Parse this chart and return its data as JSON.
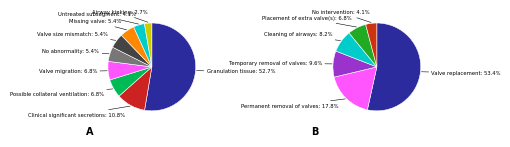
{
  "chart_A": {
    "labels": [
      "Granulation tissue: 52.7%",
      "Clinical significant secretions: 10.8%",
      "Possible collateral ventilation: 6.8%",
      "Valve migration: 6.8%",
      "No abnormality: 5.4%",
      "Valve size mismatch: 5.4%",
      "Missing valve: 5.4%",
      "Untreated subsegment: 4.1%",
      "Airway kinking: 2.7%"
    ],
    "values": [
      52.7,
      10.8,
      6.8,
      6.8,
      5.4,
      5.4,
      5.4,
      4.1,
      2.7
    ],
    "colors": [
      "#2b2b9e",
      "#cc2222",
      "#00bb55",
      "#ff55ff",
      "#777777",
      "#444444",
      "#ff8800",
      "#00cccc",
      "#cccc00"
    ],
    "startangle": 90,
    "label": "A"
  },
  "chart_B": {
    "labels": [
      "Valve replacement: 53.4%",
      "Permanent removal of valves: 17.8%",
      "Temporary removal of valves: 9.6%",
      "Cleaning of airways: 8.2%",
      "Placement of extra valve(s): 6.8%",
      "No intervention: 4.1%"
    ],
    "values": [
      53.4,
      17.8,
      9.6,
      8.2,
      6.8,
      4.1
    ],
    "colors": [
      "#2b2b9e",
      "#ff55ff",
      "#9933cc",
      "#00cccc",
      "#22aa22",
      "#cc3311"
    ],
    "startangle": 90,
    "label": "B"
  },
  "fontsize_labels": 3.8,
  "fontsize_panel": 7
}
